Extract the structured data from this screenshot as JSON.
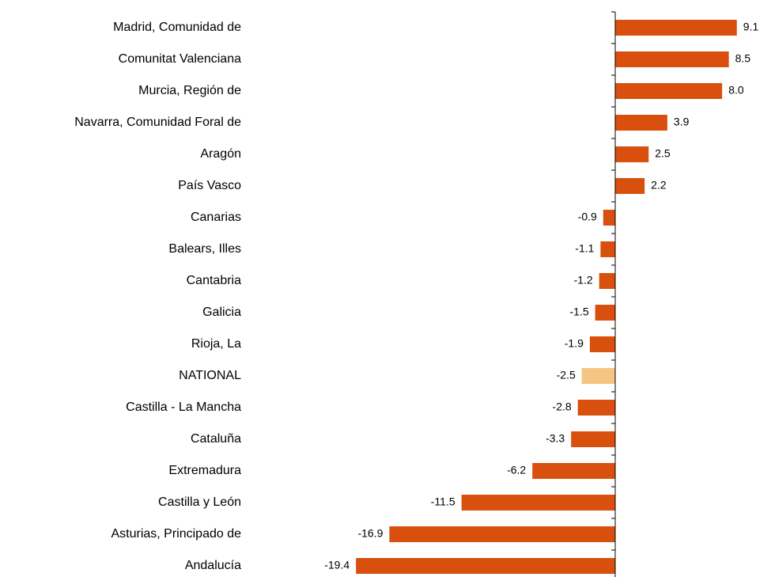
{
  "chart_data": {
    "type": "hbar",
    "categories": [
      "Madrid, Comunidad de",
      "Comunitat Valenciana",
      "Murcia, Región de",
      "Navarra, Comunidad Foral de",
      "Aragón",
      "País Vasco",
      "Canarias",
      "Balears, Illes",
      "Cantabria",
      "Galicia",
      "Rioja, La",
      "NATIONAL",
      "Castilla - La Mancha",
      "Cataluña",
      "Extremadura",
      "Castilla y León",
      "Asturias, Principado de",
      "Andalucía"
    ],
    "values": [
      9.1,
      8.5,
      8.0,
      3.9,
      2.5,
      2.2,
      -0.9,
      -1.1,
      -1.2,
      -1.5,
      -1.9,
      -2.5,
      -2.8,
      -3.3,
      -6.2,
      -11.5,
      -16.9,
      -19.4
    ],
    "value_labels": [
      "9.1",
      "8.5",
      "8.0",
      "3.9",
      "2.5",
      "2.2",
      "-0.9",
      "-1.1",
      "-1.2",
      "-1.5",
      "-1.9",
      "-2.5",
      "-2.8",
      "-3.3",
      "-6.2",
      "-11.5",
      "-16.9",
      "-19.4"
    ],
    "colors": [
      "#d84f0e",
      "#d84f0e",
      "#d84f0e",
      "#d84f0e",
      "#d84f0e",
      "#d84f0e",
      "#d84f0e",
      "#d84f0e",
      "#d84f0e",
      "#d84f0e",
      "#d84f0e",
      "#f5c583",
      "#d84f0e",
      "#d84f0e",
      "#d84f0e",
      "#d84f0e",
      "#d84f0e",
      "#d84f0e"
    ],
    "xlim": [
      -20,
      10
    ]
  }
}
